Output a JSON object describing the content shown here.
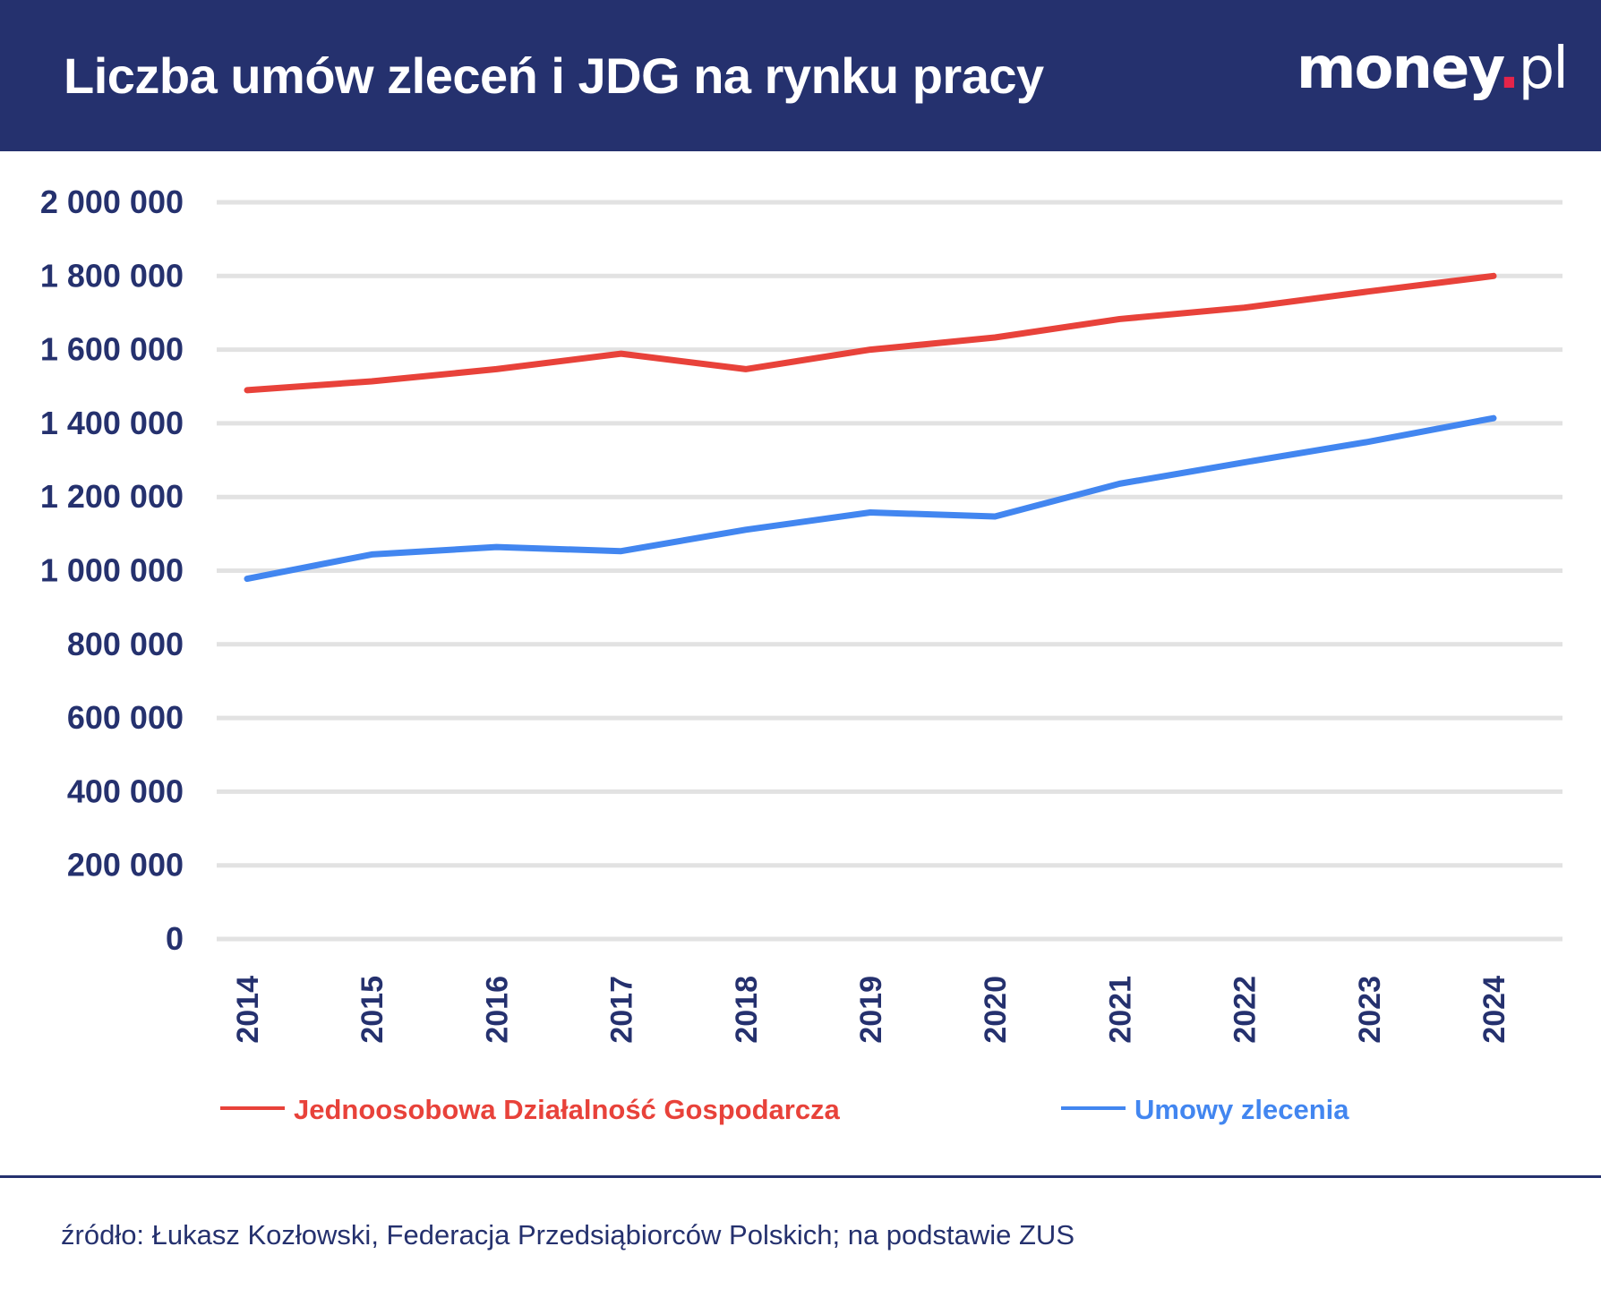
{
  "header": {
    "title": "Liczba umów zleceń i JDG na rynku pracy",
    "logo": "money.pl"
  },
  "chart_data": {
    "type": "line",
    "title": "Liczba umów zleceń i JDG na rynku pracy",
    "x": [
      "2014",
      "2015",
      "2016",
      "2017",
      "2018",
      "2019",
      "2020",
      "2021",
      "2022",
      "2023",
      "2024"
    ],
    "ylim": [
      0,
      2000000
    ],
    "yticks": [
      0,
      200000,
      400000,
      600000,
      800000,
      1000000,
      1200000,
      1400000,
      1600000,
      1800000,
      2000000
    ],
    "ytick_labels": [
      "0",
      "200 000",
      "400 000",
      "600 000",
      "800 000",
      "1 000 000",
      "1 200 000",
      "1 400 000",
      "1 600 000",
      "1 800 000",
      "2 000 000"
    ],
    "grid": true,
    "legend_position": "bottom",
    "series": [
      {
        "name": "Jednoosobowa Działalność Gospodarcza",
        "color": "#e8423a",
        "values": [
          1490000,
          1514000,
          1547000,
          1589000,
          1547000,
          1600000,
          1633000,
          1683000,
          1714000,
          1758000,
          1800000
        ]
      },
      {
        "name": "Umowy zlecenia",
        "color": "#4286f0",
        "values": [
          978000,
          1044000,
          1064000,
          1053000,
          1111000,
          1158000,
          1147000,
          1236000,
          1294000,
          1350000,
          1414000
        ]
      }
    ]
  },
  "footer": {
    "source": "źródło: Łukasz Kozłowski, Federacja Przedsiąbiorców Polskich; na podstawie ZUS"
  }
}
